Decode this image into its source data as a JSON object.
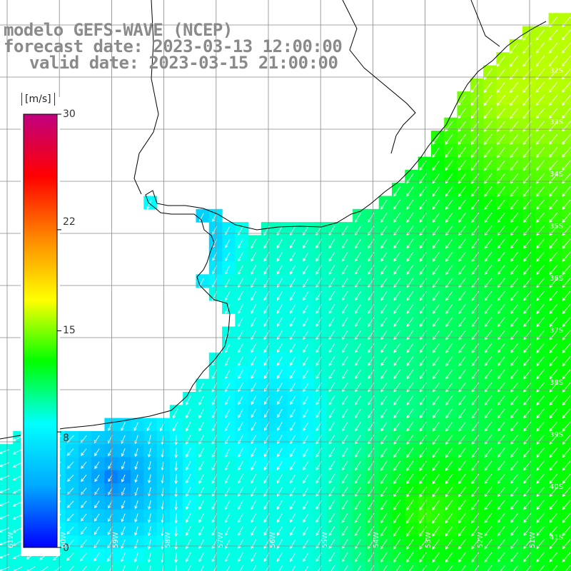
{
  "title": {
    "line1": "modelo GEFS-WAVE (NCEP)",
    "line2": "forecast date: 2023-03-13 12:00:00",
    "line3": "valid date: 2023-03-15 21:00:00"
  },
  "colorbar": {
    "units": "[m/s]",
    "ticks": [
      "30",
      "22",
      "15",
      "8",
      "0"
    ],
    "tick_values": [
      30,
      22,
      15,
      8,
      0
    ],
    "min": 0,
    "max": 30,
    "colors": [
      "#0000ff",
      "#00aaff",
      "#00ffff",
      "#00ff00",
      "#ffff00",
      "#ff8800",
      "#ff0000",
      "#c00080"
    ]
  },
  "lat_labels": [
    "32S",
    "33S",
    "34S",
    "35S",
    "36S",
    "37S",
    "38S",
    "39S",
    "40S",
    "41S"
  ],
  "lon_labels": [
    "61W",
    "60W",
    "59W",
    "58W",
    "57W",
    "56W",
    "55W",
    "54W",
    "53W",
    "52W",
    "51W"
  ],
  "colors": {
    "land": "#ffffff",
    "coast": "#000000",
    "grid": "#888888",
    "arrow": "#ffffff",
    "title_text": "#8a8a8a"
  },
  "wind_field": {
    "description_units": "m/s",
    "speed_min": 0,
    "speed_max": 30
  }
}
